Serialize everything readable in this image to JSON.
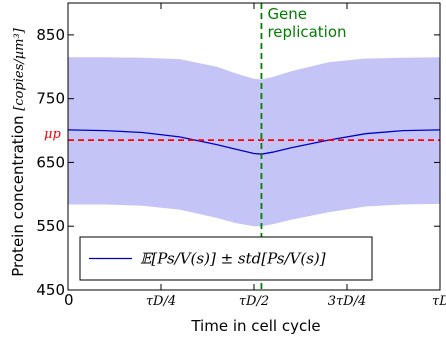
{
  "chart_data": {
    "type": "area",
    "xlabel": "Time in cell cycle",
    "ylabel_main": "Protein concentration ",
    "ylabel_unit": "[copies/µm³]",
    "xlim": [
      0,
      1
    ],
    "ylim": [
      450,
      900
    ],
    "x_ticks": [
      {
        "value": 0,
        "label": "0",
        "math": false
      },
      {
        "value": 0.25,
        "label": "τD/4",
        "math": true
      },
      {
        "value": 0.5,
        "label": "τD/2",
        "math": true
      },
      {
        "value": 0.75,
        "label": "3τD/4",
        "math": true
      },
      {
        "value": 1,
        "label": "τD",
        "math": true
      }
    ],
    "y_ticks": [
      {
        "value": 450,
        "label": "450"
      },
      {
        "value": 550,
        "label": "550"
      },
      {
        "value": 650,
        "label": "650"
      },
      {
        "value": 750,
        "label": "750"
      },
      {
        "value": 850,
        "label": "850"
      }
    ],
    "series": [
      {
        "name": "𝔼[Ps/V(s)] ± std[Ps/V(s)]",
        "color": "#0000cc",
        "band_color": "#c4c4f6",
        "x": [
          0,
          0.1,
          0.2,
          0.3,
          0.4,
          0.45,
          0.5,
          0.52,
          0.55,
          0.6,
          0.7,
          0.8,
          0.9,
          1.0
        ],
        "mean": [
          701,
          700,
          697,
          690,
          678,
          671,
          664,
          663,
          666,
          673,
          685,
          695,
          700,
          701
        ],
        "upper": [
          815,
          815,
          814,
          812,
          800,
          790,
          781,
          780,
          784,
          793,
          807,
          813,
          814,
          815
        ],
        "lower": [
          584,
          584,
          582,
          576,
          563,
          555,
          550,
          550,
          553,
          560,
          572,
          581,
          584,
          585
        ]
      }
    ],
    "hlines": [
      {
        "y": 685,
        "color": "#ff0000",
        "style": "dashed",
        "label": "μp"
      }
    ],
    "vlines": [
      {
        "x": 0.52,
        "color": "#008000",
        "style": "dashed"
      }
    ],
    "annotations": [
      {
        "text_lines": [
          "Gene",
          "replication"
        ],
        "color": "#008000"
      }
    ],
    "legend_position": "lower-center",
    "grid": false
  }
}
